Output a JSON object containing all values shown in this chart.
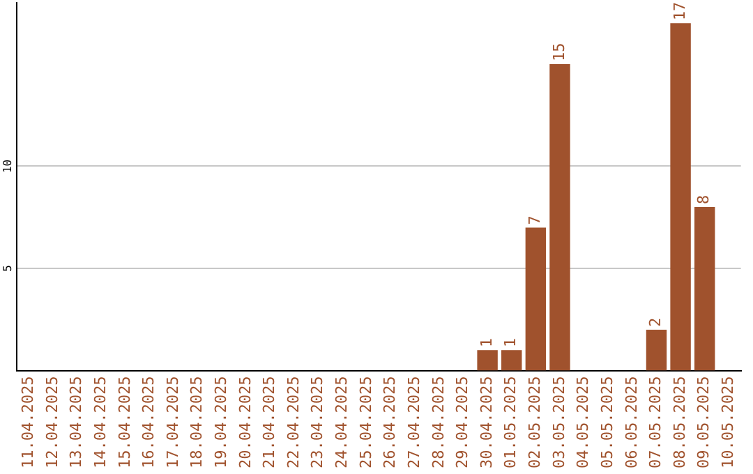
{
  "chart_data": {
    "type": "bar",
    "categories": [
      "11.04.2025",
      "12.04.2025",
      "13.04.2025",
      "14.04.2025",
      "15.04.2025",
      "16.04.2025",
      "17.04.2025",
      "18.04.2025",
      "19.04.2025",
      "20.04.2025",
      "21.04.2025",
      "22.04.2025",
      "23.04.2025",
      "24.04.2025",
      "25.04.2025",
      "26.04.2025",
      "27.04.2025",
      "28.04.2025",
      "29.04.2025",
      "30.04.2025",
      "01.05.2025",
      "02.05.2025",
      "03.05.2025",
      "04.05.2025",
      "05.05.2025",
      "06.05.2025",
      "07.05.2025",
      "08.05.2025",
      "09.05.2025",
      "10.05.2025"
    ],
    "values": [
      0,
      0,
      0,
      0,
      0,
      0,
      0,
      0,
      0,
      0,
      0,
      0,
      0,
      0,
      0,
      0,
      0,
      0,
      0,
      1,
      1,
      7,
      15,
      0,
      0,
      0,
      2,
      17,
      8,
      0
    ],
    "value_labels": [
      null,
      null,
      null,
      null,
      null,
      null,
      null,
      null,
      null,
      null,
      null,
      null,
      null,
      null,
      null,
      null,
      null,
      null,
      null,
      "1",
      "1",
      "7",
      "15",
      null,
      null,
      null,
      "2",
      "17",
      "8",
      null
    ],
    "color": "#a0522d",
    "ylim": [
      0,
      18
    ],
    "yticks": [
      5,
      10
    ],
    "grid": "y"
  }
}
